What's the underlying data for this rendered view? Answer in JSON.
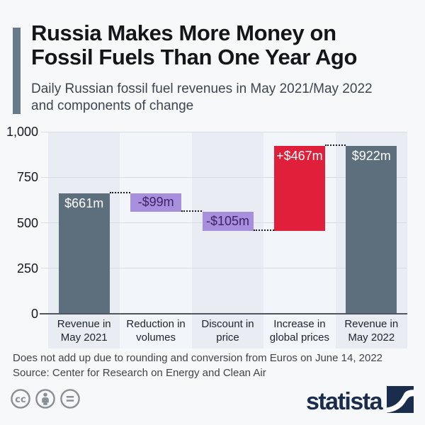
{
  "chart_data": {
    "type": "bar",
    "subtype": "waterfall",
    "title": "Russia Makes More Money on Fossil Fuels Than One Year Ago",
    "subtitle": "Daily Russian fossil fuel revenues in May 2021/May 2022 and components of change",
    "categories": [
      "Revenue in May 2021",
      "Reduction in volumes",
      "Discount in price",
      "Increase in global prices",
      "Revenue in May 2022"
    ],
    "categories_wrapped": [
      [
        "Revenue in",
        "May 2021"
      ],
      [
        "Reduction in",
        "volumes"
      ],
      [
        "Discount in",
        "price"
      ],
      [
        "Increase in",
        "global prices"
      ],
      [
        "Revenue in",
        "May 2022"
      ]
    ],
    "bars": [
      {
        "category": "Revenue in May 2021",
        "value": 661,
        "start": 0,
        "end": 661,
        "label": "$661m",
        "role": "total"
      },
      {
        "category": "Reduction in volumes",
        "value": -99,
        "start": 661,
        "end": 562,
        "label": "-$99m",
        "role": "decrease"
      },
      {
        "category": "Discount in price",
        "value": -105,
        "start": 562,
        "end": 457,
        "label": "-$105m",
        "role": "decrease"
      },
      {
        "category": "Increase in global prices",
        "value": 467,
        "start": 457,
        "end": 924,
        "label": "+$467m",
        "role": "increase"
      },
      {
        "category": "Revenue in May 2022",
        "value": 922,
        "start": 0,
        "end": 922,
        "label": "$922m",
        "role": "total"
      }
    ],
    "connectors": [
      {
        "from_bar": 0,
        "to_bar": 1,
        "level": 661
      },
      {
        "from_bar": 1,
        "to_bar": 2,
        "level": 562
      },
      {
        "from_bar": 2,
        "to_bar": 3,
        "level": 457
      },
      {
        "from_bar": 3,
        "to_bar": 4,
        "level": 924
      }
    ],
    "y_axis": {
      "min": 0,
      "max": 1000,
      "ticks": [
        {
          "value": 1000,
          "label": "1,000"
        },
        {
          "value": 750,
          "label": "750"
        },
        {
          "value": 500,
          "label": "500"
        },
        {
          "value": 250,
          "label": "250"
        },
        {
          "value": 0,
          "label": "0"
        }
      ]
    },
    "grid": true,
    "legend": false,
    "colors": {
      "total": "#5d6f7d",
      "increase": "#e0203a",
      "decrease": "#a78fdd",
      "total_label": "#ffffff",
      "increase_label": "#ffffff",
      "decrease_label": "#3e2368",
      "band_dark": "#e9edf3",
      "band_light": "#f2f5f9",
      "gridline": "#d7dce3",
      "axis_line": "#4e575e",
      "connector": "#1c1c1c",
      "tick_text": "#15181c",
      "category_text": "#1d242b"
    }
  },
  "footer": {
    "note": "Does not add up due to rounding and conversion from Euros on June 14, 2022",
    "source": "Source: Center for Research on Energy and Clean Air",
    "logo_text": "statista",
    "license_icons": [
      "cc",
      "attribution",
      "no-derivatives"
    ]
  },
  "colors": {
    "background": "#f7f8fa",
    "accent_bar": "#68798a",
    "title_text": "#131618",
    "subtitle_text": "#3d464e",
    "footnote_text": "#3f4448",
    "logo_navy": "#1b2d4d",
    "license_icon_gray": "#8a8f94"
  }
}
